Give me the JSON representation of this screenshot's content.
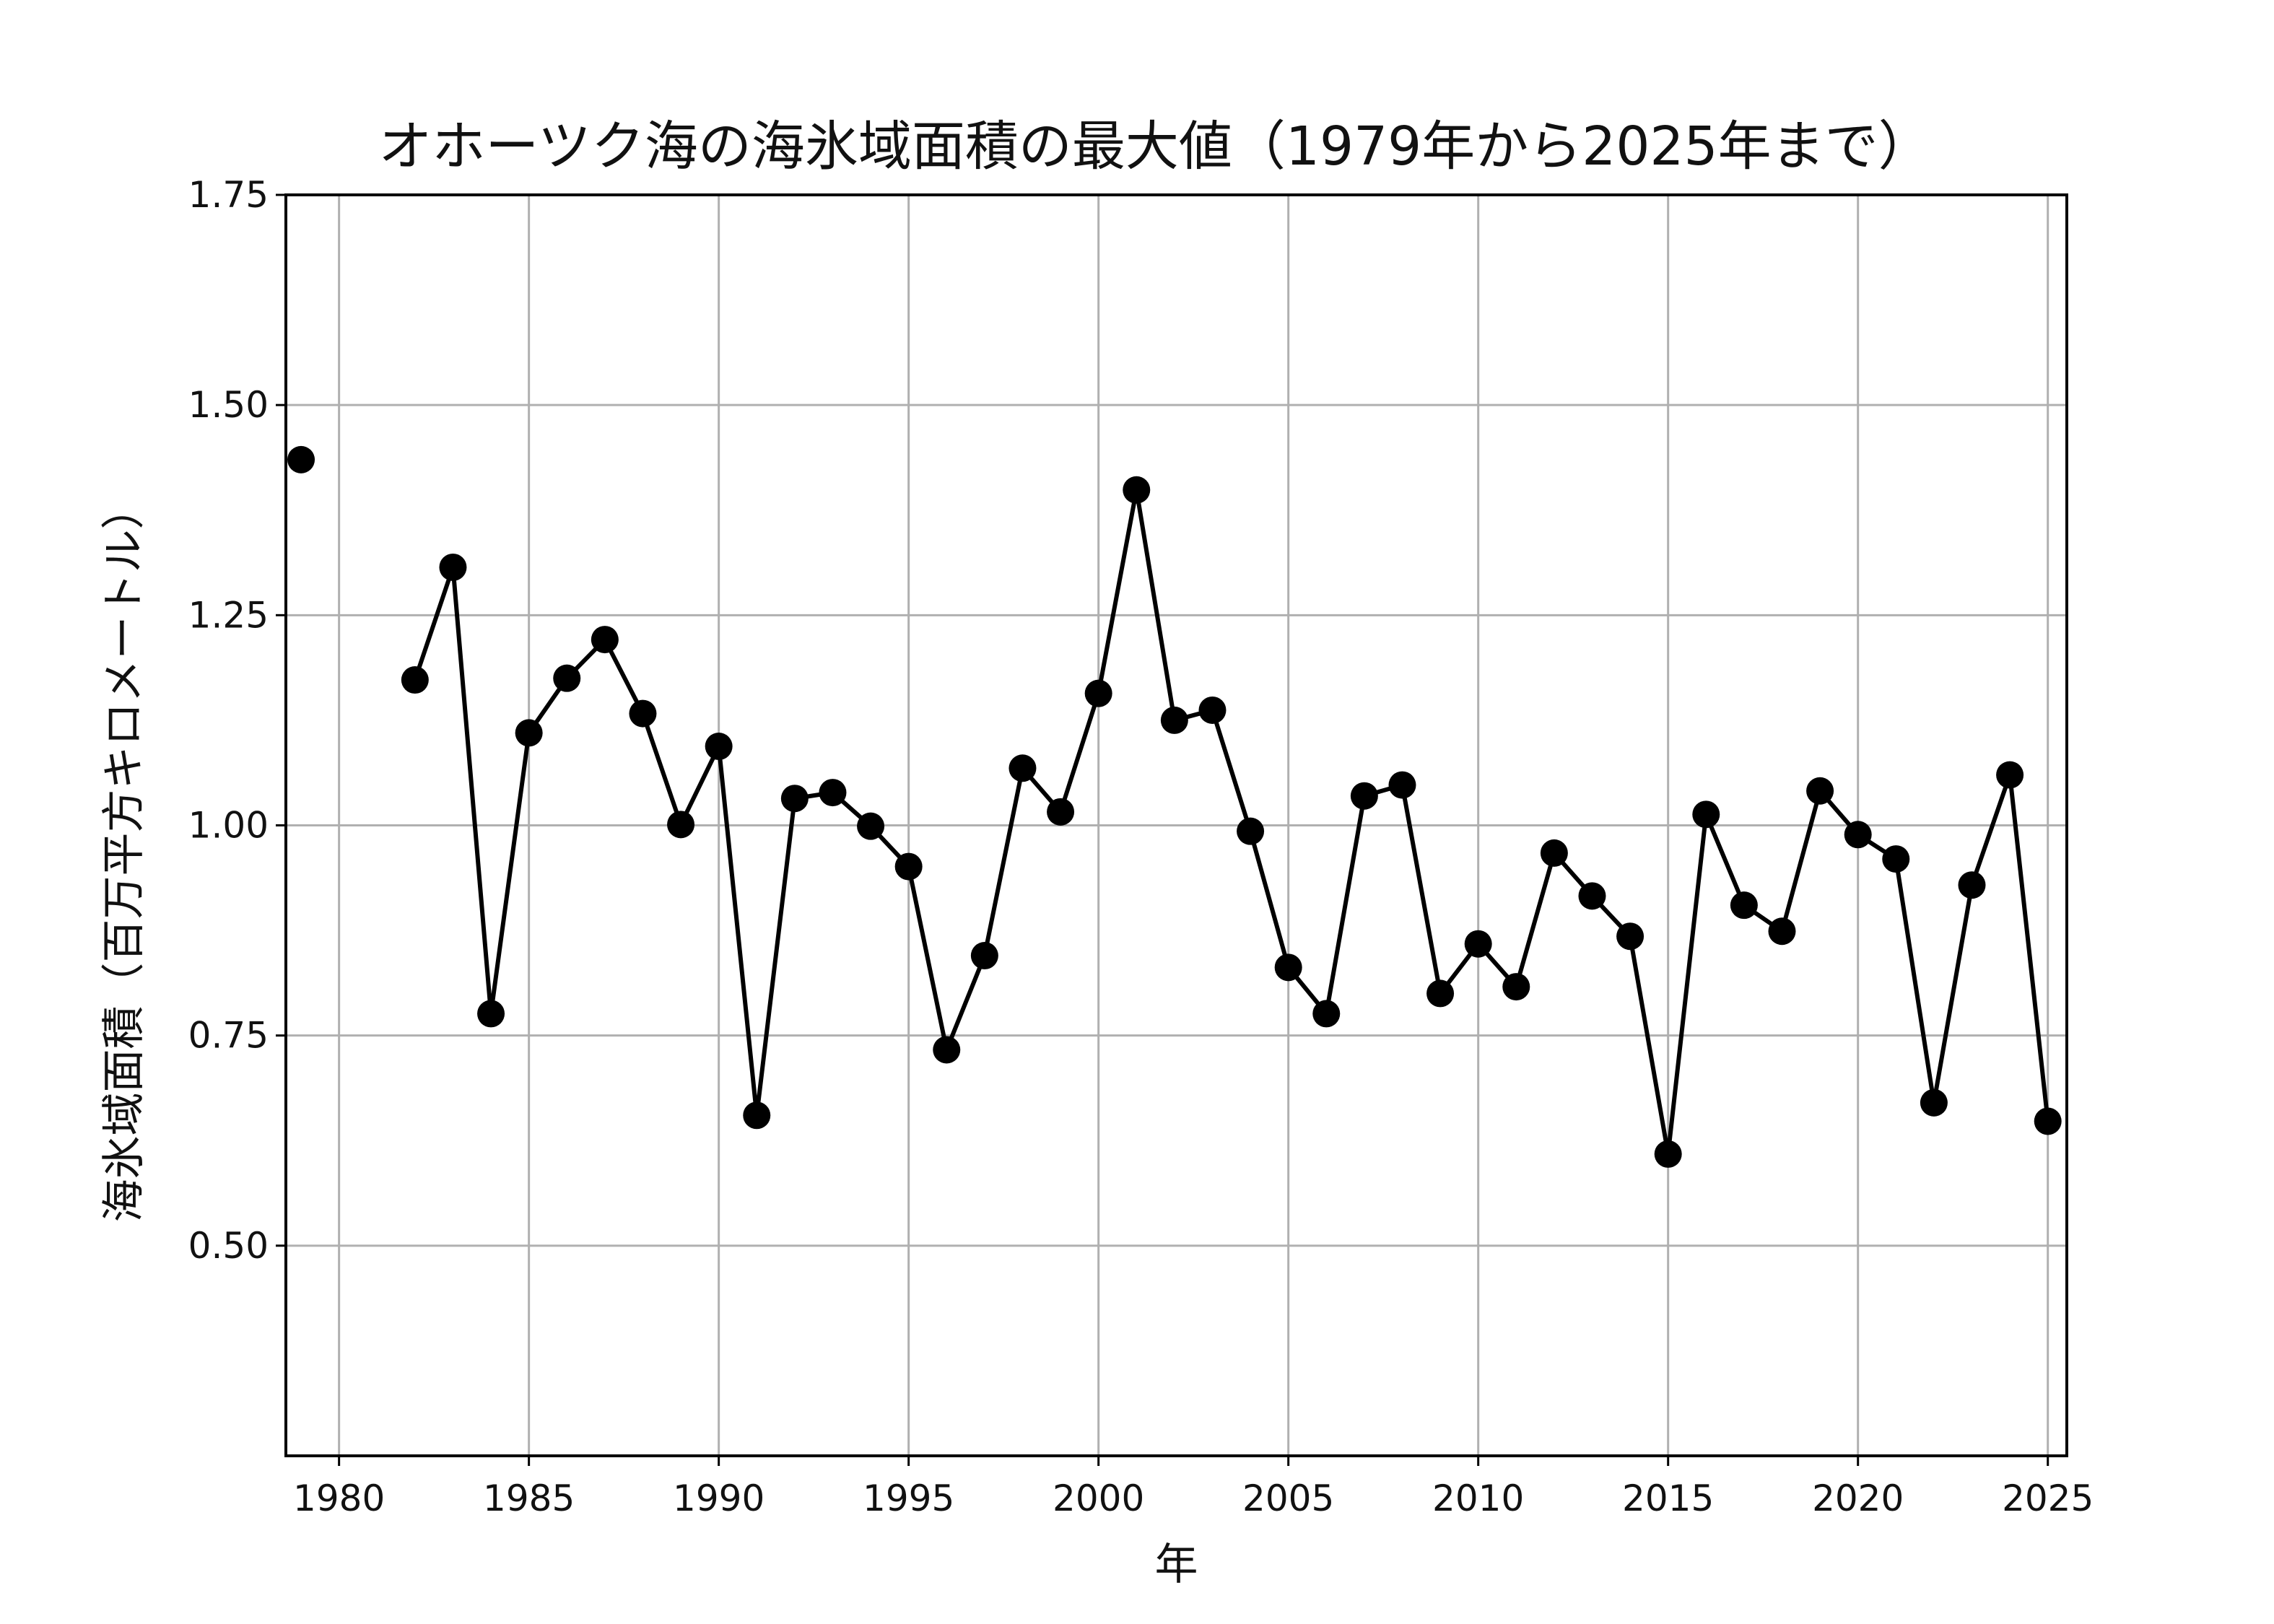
{
  "chart_data": {
    "type": "line",
    "title": "オホーツク海の海氷域面積の最大値（1979年から2025年まで）",
    "xlabel": "年",
    "ylabel": "海氷域面積（百万平方キロメートル）",
    "xlim": [
      1978.6,
      2025.5
    ],
    "ylim": [
      0.25,
      1.75
    ],
    "xticks": [
      1980,
      1985,
      1990,
      1995,
      2000,
      2005,
      2010,
      2015,
      2020,
      2025
    ],
    "yticks": [
      "0.50",
      "0.75",
      "1.00",
      "1.25",
      "1.50",
      "1.75"
    ],
    "grid": true,
    "series": [
      {
        "color": "#000000",
        "points": [
          [
            1979,
            1.435
          ],
          [
            1980,
            null
          ],
          [
            1981,
            null
          ],
          [
            1982,
            1.173
          ],
          [
            1983,
            1.307
          ],
          [
            1984,
            0.776
          ],
          [
            1985,
            1.11
          ],
          [
            1986,
            1.175
          ],
          [
            1987,
            1.221
          ],
          [
            1988,
            1.133
          ],
          [
            1989,
            1.001
          ],
          [
            1990,
            1.094
          ],
          [
            1991,
            0.655
          ],
          [
            1992,
            1.032
          ],
          [
            1993,
            1.039
          ],
          [
            1994,
            0.999
          ],
          [
            1995,
            0.951
          ],
          [
            1996,
            0.733
          ],
          [
            1997,
            0.845
          ],
          [
            1998,
            1.068
          ],
          [
            1999,
            1.016
          ],
          [
            2000,
            1.157
          ],
          [
            2001,
            1.399
          ],
          [
            2002,
            1.125
          ],
          [
            2003,
            1.137
          ],
          [
            2004,
            0.993
          ],
          [
            2005,
            0.831
          ],
          [
            2006,
            0.776
          ],
          [
            2007,
            1.035
          ],
          [
            2008,
            1.048
          ],
          [
            2009,
            0.8
          ],
          [
            2010,
            0.859
          ],
          [
            2011,
            0.808
          ],
          [
            2012,
            0.967
          ],
          [
            2013,
            0.916
          ],
          [
            2014,
            0.868
          ],
          [
            2015,
            0.609
          ],
          [
            2016,
            1.013
          ],
          [
            2017,
            0.905
          ],
          [
            2018,
            0.874
          ],
          [
            2019,
            1.041
          ],
          [
            2020,
            0.989
          ],
          [
            2021,
            0.96
          ],
          [
            2022,
            0.67
          ],
          [
            2023,
            0.929
          ],
          [
            2024,
            1.06
          ],
          [
            2025,
            0.648
          ]
        ]
      }
    ]
  }
}
